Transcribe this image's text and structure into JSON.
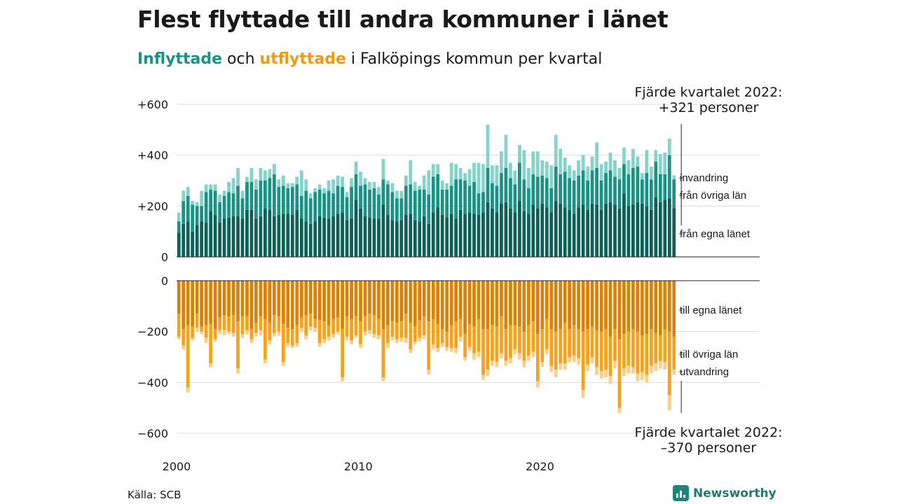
{
  "header": {
    "title": "Flest flyttade till andra kommuner i länet",
    "subtitle_in": "Inflyttade",
    "subtitle_mid": " och ",
    "subtitle_out": "utflyttade",
    "subtitle_rest": " i Falköpings kommun per kvartal"
  },
  "source": "Källa: SCB",
  "brand": {
    "name": "Newsworthy",
    "icon": "bar-chart-icon"
  },
  "colors": {
    "in_local": "#0d6057",
    "in_other": "#1a9285",
    "in_immigration": "#86d3c9",
    "out_local": "#d98306",
    "out_other": "#f5a21c",
    "out_emigration": "#f8d08c"
  },
  "chart_data": {
    "type": "bar",
    "stacked": true,
    "x_start": 2000,
    "frequency": "quarterly",
    "x_ticks": [
      {
        "year": 2000,
        "label": "2000"
      },
      {
        "year": 2010,
        "label": "2010"
      },
      {
        "year": 2020,
        "label": "2020"
      }
    ],
    "top_panel": {
      "ylim": [
        0,
        600
      ],
      "ticks": [
        {
          "v": 0,
          "label": "0"
        },
        {
          "v": 200,
          "label": "+200"
        },
        {
          "v": 400,
          "label": "+400"
        },
        {
          "v": 600,
          "label": "+600"
        }
      ],
      "series": [
        {
          "name": "från egna länet",
          "values": [
            95,
            130,
            140,
            100,
            125,
            140,
            135,
            180,
            165,
            135,
            150,
            155,
            160,
            160,
            150,
            185,
            185,
            150,
            160,
            190,
            185,
            160,
            165,
            170,
            170,
            165,
            185,
            150,
            140,
            130,
            140,
            160,
            155,
            150,
            160,
            170,
            175,
            145,
            150,
            225,
            190,
            160,
            155,
            150,
            150,
            205,
            165,
            145,
            140,
            145,
            165,
            170,
            145,
            140,
            160,
            130,
            175,
            195,
            165,
            155,
            170,
            150,
            185,
            170,
            175,
            170,
            165,
            175,
            215,
            190,
            175,
            210,
            215,
            190,
            175,
            220,
            180,
            170,
            205,
            190,
            210,
            195,
            175,
            220,
            210,
            195,
            185,
            170,
            195,
            205,
            185,
            210,
            205,
            185,
            210,
            215,
            205,
            190,
            250,
            200,
            205,
            215,
            210,
            200,
            185,
            235,
            215,
            225,
            230,
            190
          ]
        },
        {
          "name": "från övriga län",
          "values": [
            45,
            90,
            100,
            105,
            75,
            60,
            120,
            85,
            95,
            80,
            90,
            100,
            90,
            120,
            80,
            110,
            110,
            115,
            140,
            110,
            125,
            165,
            110,
            110,
            100,
            110,
            100,
            90,
            120,
            100,
            115,
            105,
            95,
            110,
            90,
            110,
            100,
            90,
            125,
            100,
            90,
            125,
            110,
            120,
            95,
            100,
            120,
            110,
            90,
            85,
            115,
            115,
            115,
            125,
            105,
            115,
            140,
            130,
            100,
            110,
            110,
            155,
            120,
            130,
            105,
            125,
            85,
            80,
            135,
            100,
            105,
            120,
            135,
            120,
            110,
            150,
            125,
            100,
            120,
            125,
            110,
            115,
            95,
            135,
            115,
            140,
            125,
            130,
            125,
            135,
            115,
            130,
            145,
            115,
            120,
            125,
            110,
            115,
            115,
            125,
            145,
            140,
            95,
            130,
            120,
            140,
            110,
            100,
            170,
            115
          ]
        },
        {
          "name": "invandring",
          "values": [
            35,
            40,
            35,
            15,
            15,
            60,
            30,
            20,
            25,
            30,
            20,
            40,
            60,
            70,
            30,
            20,
            55,
            40,
            50,
            40,
            35,
            40,
            30,
            40,
            20,
            15,
            30,
            100,
            45,
            20,
            15,
            20,
            20,
            40,
            55,
            40,
            40,
            20,
            35,
            50,
            55,
            25,
            30,
            25,
            30,
            80,
            15,
            35,
            30,
            30,
            40,
            95,
            35,
            15,
            55,
            95,
            50,
            40,
            35,
            25,
            90,
            60,
            45,
            30,
            65,
            75,
            120,
            110,
            170,
            70,
            80,
            85,
            130,
            60,
            55,
            70,
            115,
            80,
            90,
            100,
            60,
            65,
            90,
            125,
            100,
            55,
            50,
            40,
            60,
            60,
            55,
            55,
            100,
            65,
            45,
            70,
            65,
            45,
            65,
            55,
            75,
            40,
            25,
            90,
            50,
            45,
            80,
            85,
            65,
            16
          ]
        }
      ],
      "annotation_line1": "Fjärde kvartalet 2022:",
      "annotation_line2": "+321 personer"
    },
    "bottom_panel": {
      "ylim": [
        -600,
        0
      ],
      "ticks": [
        {
          "v": 0,
          "label": "0"
        },
        {
          "v": -200,
          "label": "−200"
        },
        {
          "v": -400,
          "label": "−400"
        },
        {
          "v": -600,
          "label": "−600"
        }
      ],
      "series": [
        {
          "name": "till egna länet",
          "values": [
            -130,
            -190,
            -175,
            -180,
            -130,
            -180,
            -175,
            -170,
            -190,
            -145,
            -135,
            -140,
            -135,
            -160,
            -140,
            -140,
            -190,
            -165,
            -140,
            -150,
            -165,
            -135,
            -140,
            -170,
            -185,
            -190,
            -175,
            -145,
            -135,
            -130,
            -150,
            -155,
            -160,
            -175,
            -150,
            -145,
            -190,
            -140,
            -150,
            -140,
            -160,
            -140,
            -130,
            -135,
            -150,
            -190,
            -175,
            -160,
            -165,
            -160,
            -130,
            -165,
            -180,
            -155,
            -140,
            -160,
            -150,
            -170,
            -190,
            -200,
            -175,
            -160,
            -150,
            -210,
            -170,
            -180,
            -150,
            -190,
            -190,
            -175,
            -180,
            -140,
            -190,
            -175,
            -175,
            -180,
            -200,
            -175,
            -160,
            -210,
            -190,
            -150,
            -190,
            -200,
            -190,
            -165,
            -190,
            -175,
            -190,
            -200,
            -190,
            -180,
            -195,
            -200,
            -190,
            -220,
            -190,
            -230,
            -210,
            -200,
            -190,
            -200,
            -215,
            -210,
            -190,
            -205,
            -215,
            -190,
            -200,
            -220
          ]
        },
        {
          "name": "till övriga län",
          "values": [
            -90,
            -65,
            -245,
            -45,
            -55,
            -20,
            -50,
            -155,
            -40,
            -50,
            -60,
            -60,
            -70,
            -185,
            -70,
            -55,
            -40,
            -40,
            -55,
            -160,
            -70,
            -70,
            -60,
            -150,
            -60,
            -65,
            -70,
            -40,
            -80,
            -50,
            -35,
            -90,
            -70,
            -45,
            -60,
            -55,
            -190,
            -80,
            -85,
            -75,
            -90,
            -60,
            -65,
            -75,
            -65,
            -190,
            -70,
            -60,
            -65,
            -65,
            -95,
            -105,
            -60,
            -70,
            -75,
            -190,
            -100,
            -95,
            -55,
            -60,
            -90,
            -105,
            -70,
            -90,
            -90,
            -105,
            -130,
            -180,
            -160,
            -140,
            -140,
            -145,
            -125,
            -130,
            -95,
            -105,
            -115,
            -120,
            -120,
            -185,
            -130,
            -120,
            -145,
            -150,
            -135,
            -160,
            -110,
            -120,
            -115,
            -230,
            -140,
            -120,
            -145,
            -155,
            -160,
            -155,
            -125,
            -270,
            -135,
            -135,
            -150,
            -165,
            -145,
            -160,
            -145,
            -120,
            -100,
            -130,
            -250,
            -130
          ]
        },
        {
          "name": "utvandring",
          "values": [
            -10,
            -15,
            -20,
            -10,
            -15,
            -10,
            -20,
            -15,
            -10,
            -15,
            -20,
            -10,
            -15,
            -20,
            -15,
            -15,
            -15,
            -15,
            -20,
            -15,
            -15,
            -15,
            -15,
            -15,
            -15,
            -10,
            -15,
            -15,
            -15,
            -15,
            -15,
            -15,
            -15,
            -15,
            -15,
            -10,
            -15,
            -15,
            -15,
            -10,
            -15,
            -15,
            -15,
            -15,
            -15,
            -15,
            -20,
            -15,
            -15,
            -15,
            -20,
            -15,
            -10,
            -15,
            -15,
            -20,
            -20,
            -15,
            -15,
            -15,
            -15,
            -20,
            -20,
            -15,
            -15,
            -25,
            -20,
            -20,
            -25,
            -20,
            -20,
            -20,
            -20,
            -20,
            -20,
            -25,
            -25,
            -20,
            -20,
            -25,
            -20,
            -20,
            -25,
            -30,
            -25,
            -25,
            -20,
            -25,
            -25,
            -30,
            -25,
            -25,
            -30,
            -30,
            -30,
            -30,
            -30,
            -20,
            -30,
            -30,
            -25,
            -30,
            -30,
            -30,
            -30,
            -30,
            -30,
            -30,
            -60,
            -20
          ]
        }
      ],
      "annotation_line1": "Fjärde kvartalet 2022:",
      "annotation_line2": "–370 personer"
    }
  }
}
